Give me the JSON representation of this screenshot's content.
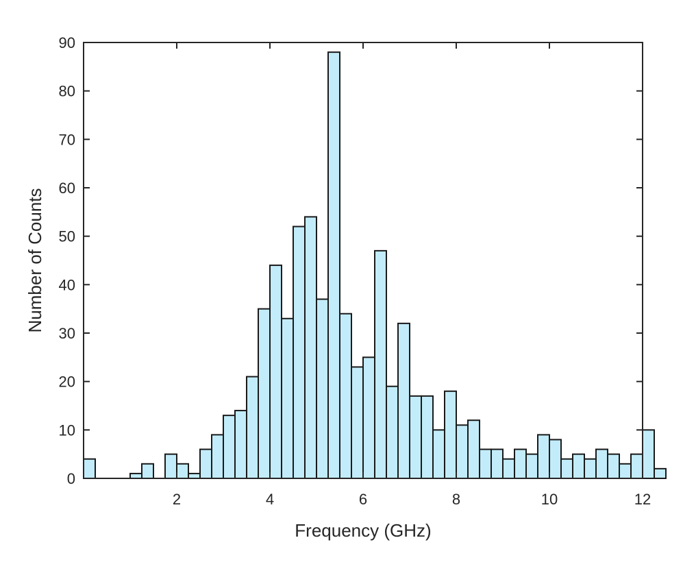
{
  "chart_data": {
    "type": "bar",
    "title": "",
    "xlabel": "Frequency (GHz)",
    "ylabel": "Number of Counts",
    "xlim": [
      0,
      12
    ],
    "ylim": [
      0,
      90
    ],
    "xticks": [
      2,
      4,
      6,
      8,
      10,
      12
    ],
    "yticks": [
      0,
      10,
      20,
      30,
      40,
      50,
      60,
      70,
      80,
      90
    ],
    "grid": false,
    "bin_width": 0.25,
    "bin_start": 0,
    "bar_color": "#c2ecf9",
    "edge_color": "#1a1a1a",
    "values": [
      4,
      0,
      0,
      0,
      1,
      3,
      0,
      5,
      3,
      1,
      6,
      9,
      13,
      14,
      21,
      35,
      44,
      33,
      52,
      54,
      37,
      88,
      34,
      23,
      25,
      47,
      19,
      32,
      17,
      17,
      10,
      18,
      11,
      12,
      6,
      6,
      4,
      6,
      5,
      9,
      8,
      4,
      5,
      4,
      6,
      5,
      3,
      5,
      10,
      2
    ]
  }
}
